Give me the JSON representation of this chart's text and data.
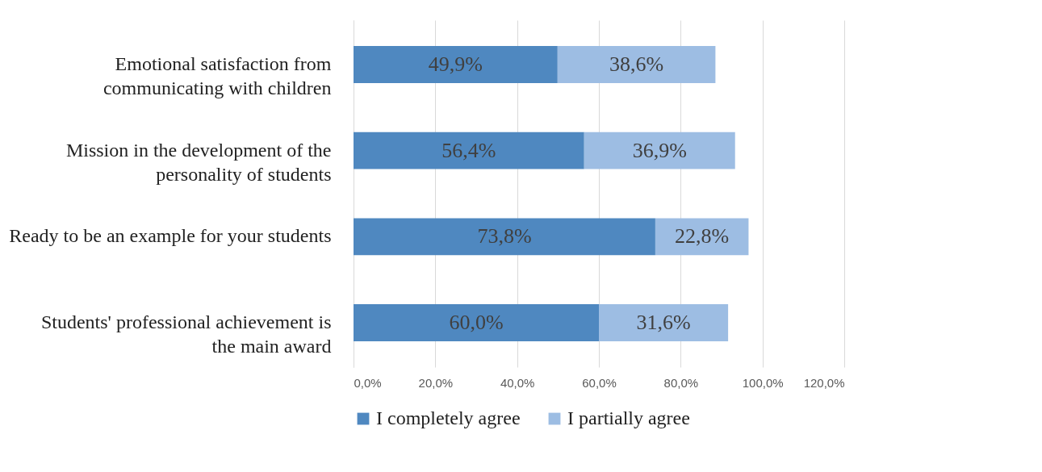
{
  "chart_data": {
    "type": "bar",
    "orientation": "horizontal",
    "stacked": true,
    "categories": [
      "Emotional satisfaction from communicating with children",
      "Mission in the development of the personality of students",
      "Ready to be an example for your students",
      "Students' professional achievement is the main award"
    ],
    "series": [
      {
        "name": "I completely agree",
        "color": "#4f88c0",
        "values": [
          49.9,
          56.4,
          73.8,
          60.0
        ],
        "value_labels": [
          "49,9%",
          "56,4%",
          "73,8%",
          "60,0%"
        ]
      },
      {
        "name": "I partially agree",
        "color": "#9dbde3",
        "values": [
          38.6,
          36.9,
          22.8,
          31.6
        ],
        "value_labels": [
          "38,6%",
          "36,9%",
          "22,8%",
          "31,6%"
        ]
      }
    ],
    "xlim": [
      0,
      120
    ],
    "xticks": [
      {
        "value": 0,
        "label": "0,0%"
      },
      {
        "value": 20,
        "label": "20,0%"
      },
      {
        "value": 40,
        "label": "40,0%"
      },
      {
        "value": 60,
        "label": "60,0%"
      },
      {
        "value": 80,
        "label": "80,0%"
      },
      {
        "value": 100,
        "label": "100,0%"
      },
      {
        "value": 120,
        "label": "120,0%"
      }
    ],
    "grid": "x",
    "legend": "bottom"
  }
}
